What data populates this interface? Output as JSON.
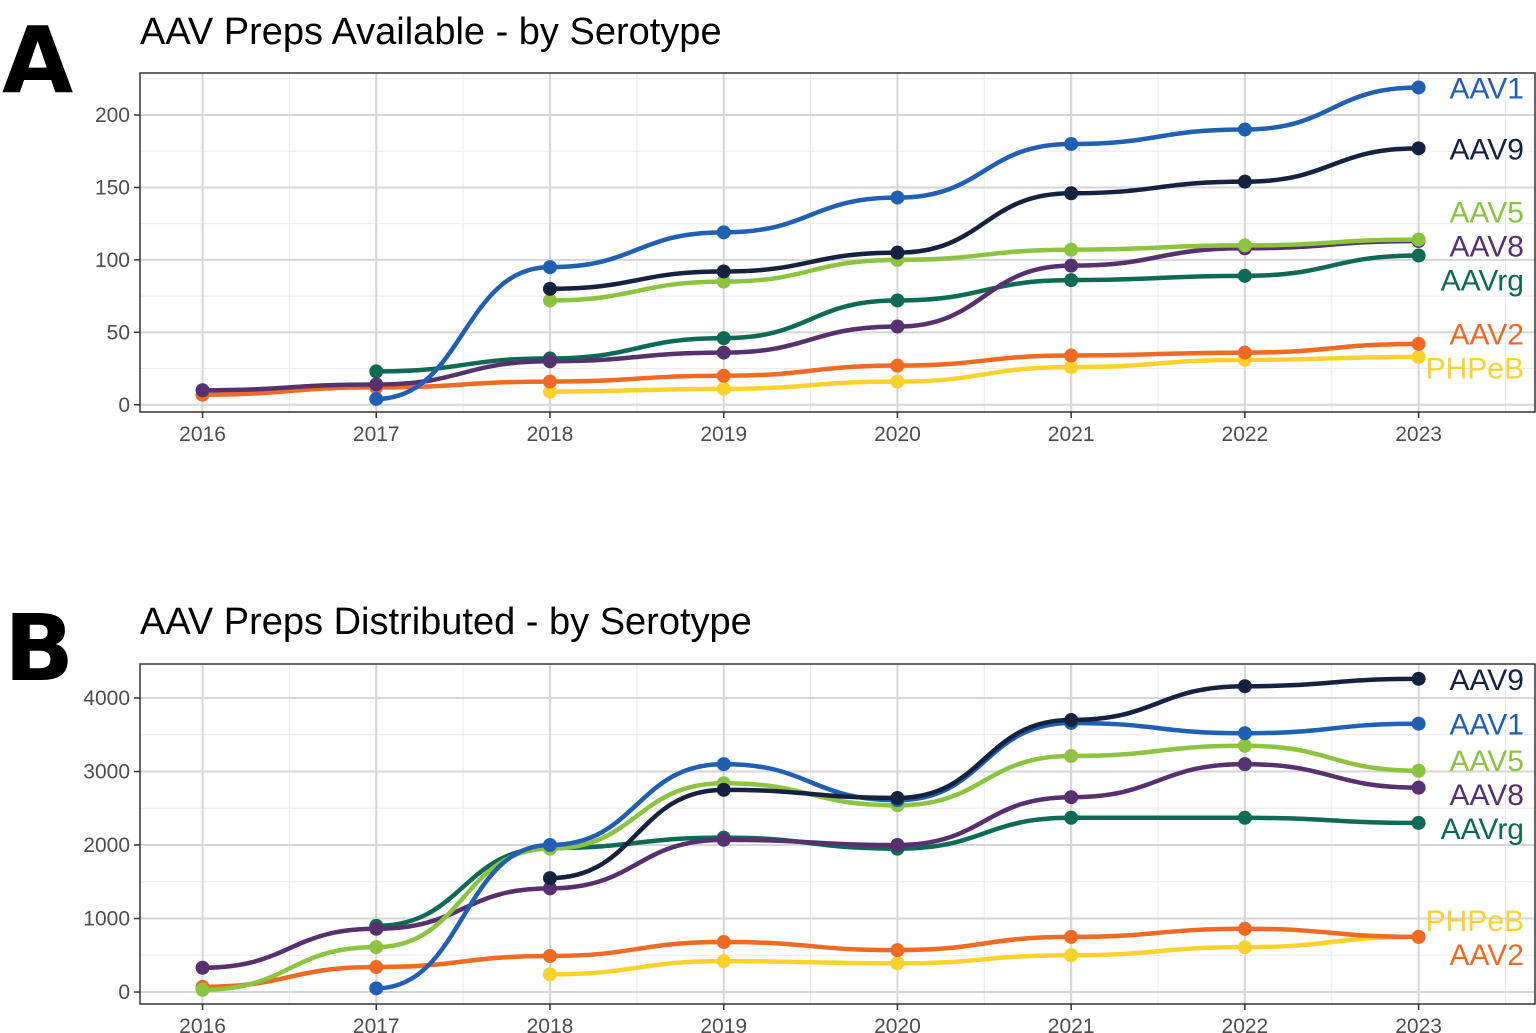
{
  "colors": {
    "AAV1": "#1f5fb4",
    "AAV9": "#15223f",
    "AAV5": "#8cc43f",
    "AAV8": "#57306f",
    "AAVrg": "#0d6b55",
    "AAV2": "#f06a24",
    "PHPeB": "#fbd12c"
  },
  "chart_data": [
    {
      "panel_letter": "A",
      "type": "line",
      "title": "AAV Preps Available - by Serotype",
      "xlabel": "",
      "ylabel": "",
      "xlim": [
        2015.64,
        2023.67
      ],
      "ylim": [
        -5,
        229
      ],
      "xticks": [
        2016,
        2017,
        2018,
        2019,
        2020,
        2021,
        2022,
        2023
      ],
      "yticks": [
        0,
        50,
        100,
        150,
        200
      ],
      "grid": true,
      "legend": "direct labels at right end of lines",
      "series": [
        {
          "name": "AAV1",
          "x": [
            2017,
            2018,
            2019,
            2020,
            2021,
            2022,
            2023
          ],
          "values": [
            4,
            95,
            119,
            143,
            180,
            190,
            219
          ]
        },
        {
          "name": "AAV9",
          "x": [
            2018,
            2019,
            2020,
            2021,
            2022,
            2023
          ],
          "values": [
            80,
            92,
            105,
            146,
            154,
            177
          ]
        },
        {
          "name": "AAV5",
          "x": [
            2018,
            2019,
            2020,
            2021,
            2022,
            2023
          ],
          "values": [
            72,
            85,
            100,
            107,
            110,
            114
          ]
        },
        {
          "name": "AAV8",
          "x": [
            2016,
            2017,
            2018,
            2019,
            2020,
            2021,
            2022,
            2023
          ],
          "values": [
            10,
            14,
            30,
            36,
            54,
            96,
            108,
            113
          ]
        },
        {
          "name": "AAVrg",
          "x": [
            2017,
            2018,
            2019,
            2020,
            2021,
            2022,
            2023
          ],
          "values": [
            23,
            32,
            46,
            72,
            86,
            89,
            103
          ]
        },
        {
          "name": "AAV2",
          "x": [
            2016,
            2017,
            2018,
            2019,
            2020,
            2021,
            2022,
            2023
          ],
          "values": [
            7,
            12,
            16,
            20,
            27,
            34,
            36,
            42
          ]
        },
        {
          "name": "PHPeB",
          "x": [
            2018,
            2019,
            2020,
            2021,
            2022,
            2023
          ],
          "values": [
            9,
            11,
            16,
            26,
            31,
            33
          ]
        }
      ]
    },
    {
      "panel_letter": "B",
      "type": "line",
      "title": "AAV Preps Distributed - by Serotype",
      "xlabel": "",
      "ylabel": "",
      "xlim": [
        2015.64,
        2023.67
      ],
      "ylim": [
        -163,
        4462
      ],
      "xticks": [
        2016,
        2017,
        2018,
        2019,
        2020,
        2021,
        2022,
        2023
      ],
      "yticks": [
        0,
        1000,
        2000,
        3000,
        4000
      ],
      "grid": true,
      "legend": "direct labels at right end of lines",
      "series": [
        {
          "name": "AAV9",
          "x": [
            2018,
            2019,
            2020,
            2021,
            2022,
            2023
          ],
          "values": [
            1550,
            2750,
            2640,
            3700,
            4160,
            4260
          ]
        },
        {
          "name": "AAV1",
          "x": [
            2017,
            2018,
            2019,
            2020,
            2021,
            2022,
            2023
          ],
          "values": [
            50,
            2000,
            3100,
            2610,
            3660,
            3520,
            3650
          ]
        },
        {
          "name": "AAV5",
          "x": [
            2016,
            2017,
            2018,
            2019,
            2020,
            2021,
            2022,
            2023
          ],
          "values": [
            30,
            610,
            1950,
            2840,
            2540,
            3210,
            3350,
            3010
          ]
        },
        {
          "name": "AAV8",
          "x": [
            2016,
            2017,
            2018,
            2019,
            2020,
            2021,
            2022,
            2023
          ],
          "values": [
            330,
            860,
            1410,
            2070,
            2000,
            2650,
            3100,
            2780
          ]
        },
        {
          "name": "AAVrg",
          "x": [
            2017,
            2018,
            2019,
            2020,
            2021,
            2022,
            2023
          ],
          "values": [
            900,
            1960,
            2100,
            1950,
            2370,
            2370,
            2300
          ]
        },
        {
          "name": "AAV2",
          "x": [
            2016,
            2017,
            2018,
            2019,
            2020,
            2021,
            2022,
            2023
          ],
          "values": [
            70,
            340,
            490,
            680,
            570,
            750,
            860,
            750
          ]
        },
        {
          "name": "PHPeB",
          "x": [
            2018,
            2019,
            2020,
            2021,
            2022,
            2023
          ],
          "values": [
            240,
            420,
            390,
            500,
            610,
            750
          ]
        }
      ]
    }
  ]
}
